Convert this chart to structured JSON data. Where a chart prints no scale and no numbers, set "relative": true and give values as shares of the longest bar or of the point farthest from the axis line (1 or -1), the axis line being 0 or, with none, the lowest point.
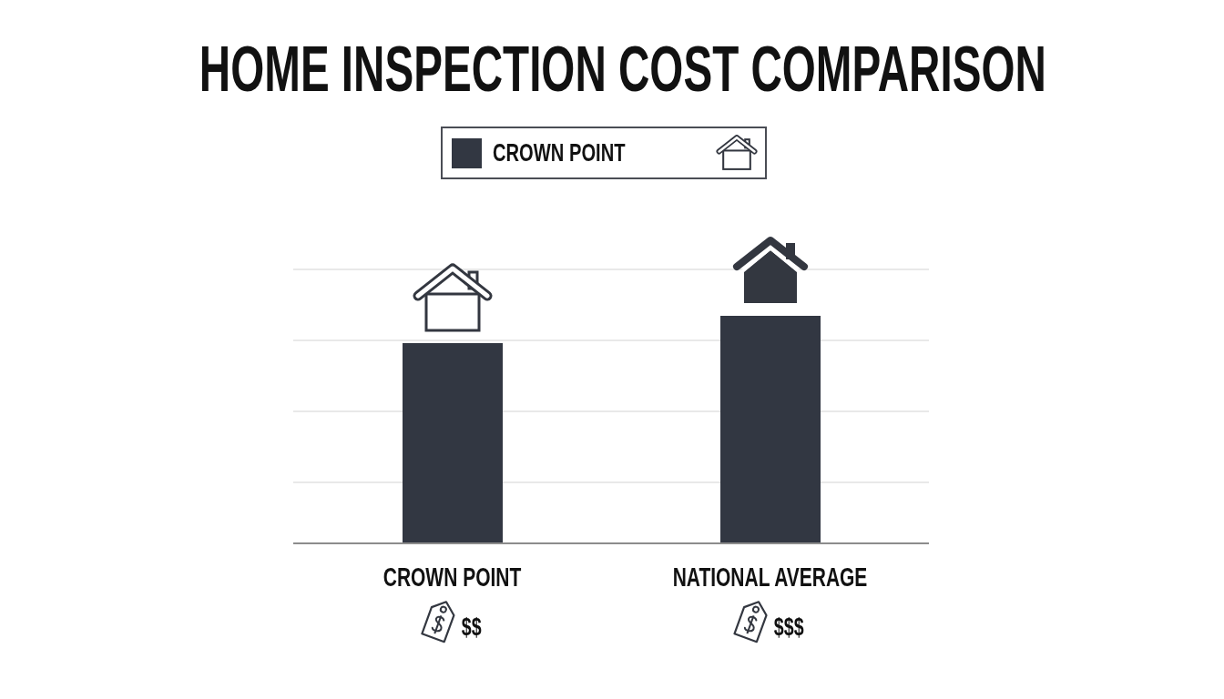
{
  "chart_data": {
    "type": "bar",
    "title": "HOME INSPECTION COST COMPARISON",
    "categories": [
      "CROWN POINT",
      "NATIONAL AVERAGE"
    ],
    "series": [
      {
        "name": "CROWN POINT",
        "color": "#323742",
        "values": [
          0.88,
          1
        ]
      }
    ],
    "relative": true,
    "grid": "y",
    "legend": "top",
    "annotations": [
      "$$",
      "$$$"
    ]
  }
}
